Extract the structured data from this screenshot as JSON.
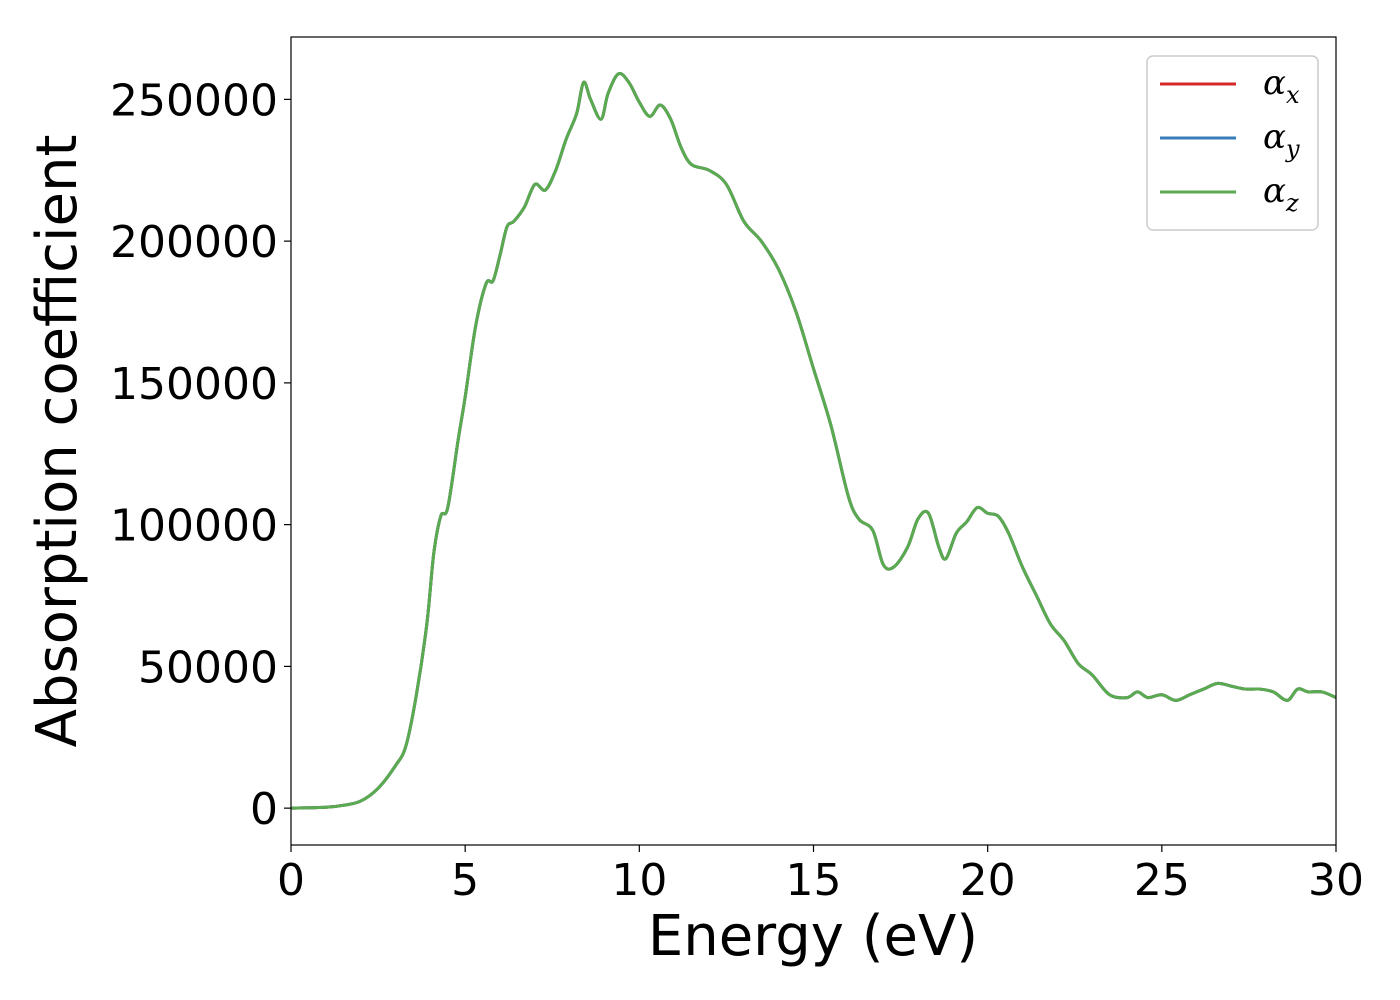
{
  "chart_data": {
    "type": "line",
    "title": "",
    "xlabel": "Energy (eV)",
    "ylabel": "Absorption coefficient",
    "xlim": [
      0,
      30
    ],
    "ylim": [
      -13000,
      272000
    ],
    "xticks": [
      0,
      5,
      10,
      15,
      20,
      25,
      30
    ],
    "xtick_labels": [
      "0",
      "5",
      "10",
      "15",
      "20",
      "25",
      "30"
    ],
    "yticks": [
      0,
      50000,
      100000,
      150000,
      200000,
      250000
    ],
    "ytick_labels": [
      "0",
      "50000",
      "100000",
      "150000",
      "200000",
      "250000"
    ],
    "grid": false,
    "legend_position": "top-right",
    "x": [
      0,
      1,
      1.5,
      2,
      2.5,
      3,
      3.3,
      3.6,
      3.9,
      4.1,
      4.3,
      4.5,
      4.8,
      5.0,
      5.3,
      5.6,
      5.8,
      6.0,
      6.2,
      6.4,
      6.7,
      7.0,
      7.3,
      7.6,
      7.9,
      8.2,
      8.4,
      8.6,
      8.9,
      9.1,
      9.4,
      9.7,
      10.0,
      10.3,
      10.6,
      10.9,
      11.2,
      11.5,
      12.0,
      12.5,
      13.0,
      13.5,
      14.0,
      14.5,
      15.0,
      15.5,
      16.0,
      16.3,
      16.7,
      17.0,
      17.3,
      17.7,
      18.0,
      18.3,
      18.6,
      18.8,
      19.1,
      19.4,
      19.7,
      20.0,
      20.3,
      20.6,
      21.0,
      21.4,
      21.8,
      22.2,
      22.6,
      23.0,
      23.5,
      24.0,
      24.3,
      24.6,
      25.0,
      25.4,
      25.8,
      26.2,
      26.6,
      27.0,
      27.4,
      27.8,
      28.2,
      28.6,
      28.9,
      29.2,
      29.6,
      30.0
    ],
    "series": [
      {
        "name": "α_x",
        "color": "#d62728",
        "values": [
          0,
          300,
          1000,
          2500,
          7000,
          15000,
          22000,
          40000,
          65000,
          90000,
          103000,
          106000,
          130000,
          145000,
          170000,
          185000,
          186000,
          195000,
          205000,
          207000,
          212000,
          220000,
          218000,
          225000,
          236000,
          245000,
          256000,
          250000,
          243000,
          252000,
          259000,
          256000,
          249000,
          244000,
          248000,
          243000,
          233000,
          227000,
          225000,
          220000,
          207000,
          200000,
          190000,
          175000,
          155000,
          135000,
          110000,
          102000,
          98000,
          86000,
          85000,
          92000,
          102000,
          104000,
          92000,
          88000,
          97000,
          101000,
          106000,
          104000,
          103000,
          97000,
          85000,
          75000,
          65000,
          59000,
          51000,
          47000,
          40000,
          39000,
          41000,
          39000,
          40000,
          38000,
          40000,
          42000,
          44000,
          43000,
          42000,
          42000,
          41000,
          38000,
          42000,
          41000,
          41000,
          39000
        ]
      },
      {
        "name": "α_y",
        "color": "#377eb8",
        "values": [
          0,
          300,
          1000,
          2500,
          7000,
          15000,
          22000,
          40000,
          65000,
          90000,
          103000,
          106000,
          130000,
          145000,
          170000,
          185000,
          186000,
          195000,
          205000,
          207000,
          212000,
          220000,
          218000,
          225000,
          236000,
          245000,
          256000,
          250000,
          243000,
          252000,
          259000,
          256000,
          249000,
          244000,
          248000,
          243000,
          233000,
          227000,
          225000,
          220000,
          207000,
          200000,
          190000,
          175000,
          155000,
          135000,
          110000,
          102000,
          98000,
          86000,
          85000,
          92000,
          102000,
          104000,
          92000,
          88000,
          97000,
          101000,
          106000,
          104000,
          103000,
          97000,
          85000,
          75000,
          65000,
          59000,
          51000,
          47000,
          40000,
          39000,
          41000,
          39000,
          40000,
          38000,
          40000,
          42000,
          44000,
          43000,
          42000,
          42000,
          41000,
          38000,
          42000,
          41000,
          41000,
          39000
        ]
      },
      {
        "name": "α_z",
        "color": "#5aaa50",
        "values": [
          0,
          300,
          1000,
          2500,
          7000,
          15000,
          22000,
          40000,
          65000,
          90000,
          103000,
          106000,
          130000,
          145000,
          170000,
          185000,
          186000,
          195000,
          205000,
          207000,
          212000,
          220000,
          218000,
          225000,
          236000,
          245000,
          256000,
          250000,
          243000,
          252000,
          259000,
          256000,
          249000,
          244000,
          248000,
          243000,
          233000,
          227000,
          225000,
          220000,
          207000,
          200000,
          190000,
          175000,
          155000,
          135000,
          110000,
          102000,
          98000,
          86000,
          85000,
          92000,
          102000,
          104000,
          92000,
          88000,
          97000,
          101000,
          106000,
          104000,
          103000,
          97000,
          85000,
          75000,
          65000,
          59000,
          51000,
          47000,
          40000,
          39000,
          41000,
          39000,
          40000,
          38000,
          40000,
          42000,
          44000,
          43000,
          42000,
          42000,
          41000,
          38000,
          42000,
          41000,
          41000,
          39000
        ]
      }
    ],
    "legend": [
      {
        "base": "α",
        "sub": "x",
        "color": "#d62728"
      },
      {
        "base": "α",
        "sub": "y",
        "color": "#377eb8"
      },
      {
        "base": "α",
        "sub": "z",
        "color": "#5aaa50"
      }
    ]
  }
}
